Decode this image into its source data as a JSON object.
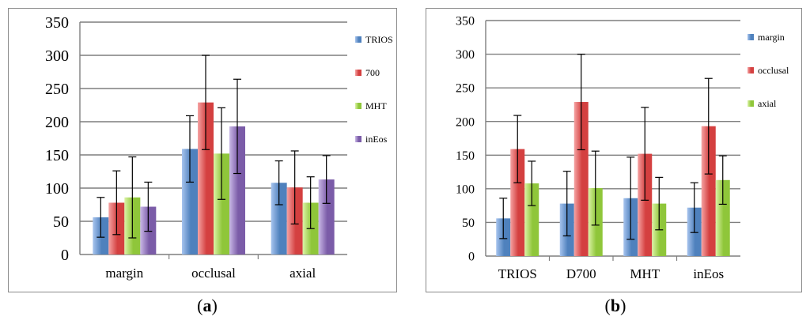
{
  "captions": {
    "a": "a",
    "b": "b"
  },
  "colors": {
    "blue": "#4f81bd",
    "blue_light": "#a7c4ee",
    "red": "#d44040",
    "red_light": "#f5a3a3",
    "green": "#8fc63a",
    "green_light": "#dbf3a6",
    "purple": "#7b5ca8",
    "purple_light": "#c9b8e6"
  },
  "chart_data": [
    {
      "id": "a",
      "type": "bar",
      "title": "",
      "xlabel": "",
      "ylabel": "",
      "ylim": [
        0,
        350
      ],
      "yticks": [
        0,
        50,
        100,
        150,
        200,
        250,
        300,
        350
      ],
      "grid": true,
      "legend": "right",
      "categories": [
        "margin",
        "occlusal",
        "axial"
      ],
      "series": [
        {
          "name": "TRIOS",
          "color": "blue",
          "values": [
            56,
            159,
            108
          ],
          "errors": [
            30,
            50,
            33
          ]
        },
        {
          "name": "700",
          "color": "red",
          "values": [
            78,
            229,
            101
          ],
          "errors": [
            48,
            71,
            55
          ]
        },
        {
          "name": "MHT",
          "color": "green",
          "values": [
            86,
            152,
            78
          ],
          "errors": [
            61,
            69,
            39
          ]
        },
        {
          "name": "inEos",
          "color": "purple",
          "values": [
            72,
            193,
            113
          ],
          "errors": [
            37,
            71,
            36
          ]
        }
      ]
    },
    {
      "id": "b",
      "type": "bar",
      "title": "",
      "xlabel": "",
      "ylabel": "",
      "ylim": [
        0,
        350
      ],
      "yticks": [
        0,
        50,
        100,
        150,
        200,
        250,
        300,
        350
      ],
      "grid": true,
      "legend": "right",
      "categories": [
        "TRIOS",
        "D700",
        "MHT",
        "inEos"
      ],
      "series": [
        {
          "name": "margin",
          "color": "blue",
          "values": [
            56,
            78,
            86,
            72
          ],
          "errors": [
            30,
            48,
            61,
            37
          ]
        },
        {
          "name": "occlusal",
          "color": "red",
          "values": [
            159,
            229,
            152,
            193
          ],
          "errors": [
            50,
            71,
            69,
            71
          ]
        },
        {
          "name": "axial",
          "color": "green",
          "values": [
            108,
            101,
            78,
            113
          ],
          "errors": [
            33,
            55,
            39,
            36
          ]
        }
      ]
    }
  ]
}
